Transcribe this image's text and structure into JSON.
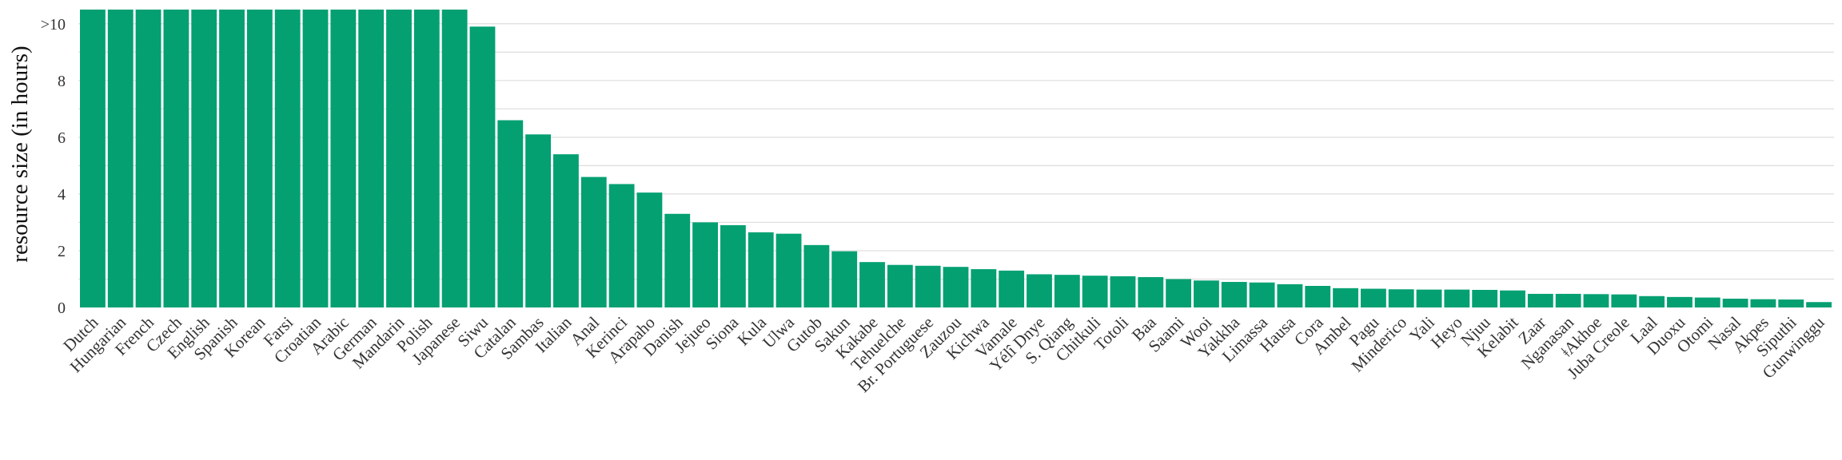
{
  "chart_data": {
    "type": "bar",
    "ylabel": "resource size (in hours)",
    "ylim": [
      0,
      10.5
    ],
    "yticks": [
      {
        "value": 0,
        "label": "0"
      },
      {
        "value": 2,
        "label": "2"
      },
      {
        "value": 4,
        "label": "4"
      },
      {
        "value": 6,
        "label": "6"
      },
      {
        "value": 8,
        "label": "8"
      },
      {
        "value": 10,
        "label": ">10"
      }
    ],
    "grid": true,
    "bar_color": "#04a072",
    "grid_color": "#dddddd",
    "categories": [
      "Dutch",
      "Hungarian",
      "French",
      "Czech",
      "English",
      "Spanish",
      "Korean",
      "Farsi",
      "Croatian",
      "Arabic",
      "German",
      "Mandarin",
      "Polish",
      "Japanese",
      "Siwu",
      "Catalan",
      "Sambas",
      "Italian",
      "Anal",
      "Kerinci",
      "Arapaho",
      "Danish",
      "Jejueo",
      "Siona",
      "Kula",
      "Ulwa",
      "Gutob",
      "Sakun",
      "Kakabe",
      "Tehuelche",
      "Br. Portuguese",
      "Zauzou",
      "Kichwa",
      "Vamale",
      "Yélî Dnye",
      "S. Qiang",
      "Chitkuli",
      "Totoli",
      "Baa",
      "Saami",
      "Wooi",
      "Yakkha",
      "Limassa",
      "Hausa",
      "Cora",
      "Ambel",
      "Pagu",
      "Minderico",
      "Yali",
      "Heyo",
      "Njuu",
      "Kelabit",
      "Zaar",
      "Nganasan",
      "ǂAkhoe",
      "Juba Creole",
      "Laal",
      "Duoxu",
      "Otomi",
      "Nasal",
      "Akpes",
      "Siputhi",
      "Gunwinggu"
    ],
    "values": [
      10.5,
      10.5,
      10.5,
      10.5,
      10.5,
      10.5,
      10.5,
      10.5,
      10.5,
      10.5,
      10.5,
      10.5,
      10.5,
      10.5,
      9.9,
      6.6,
      6.1,
      5.4,
      4.6,
      4.35,
      4.05,
      3.3,
      3.0,
      2.9,
      2.65,
      2.6,
      2.2,
      1.98,
      1.6,
      1.5,
      1.47,
      1.43,
      1.35,
      1.3,
      1.17,
      1.15,
      1.12,
      1.1,
      1.07,
      1.0,
      0.95,
      0.9,
      0.88,
      0.82,
      0.76,
      0.68,
      0.66,
      0.64,
      0.63,
      0.63,
      0.62,
      0.6,
      0.48,
      0.48,
      0.47,
      0.46,
      0.4,
      0.37,
      0.35,
      0.31,
      0.29,
      0.28,
      0.19
    ]
  }
}
